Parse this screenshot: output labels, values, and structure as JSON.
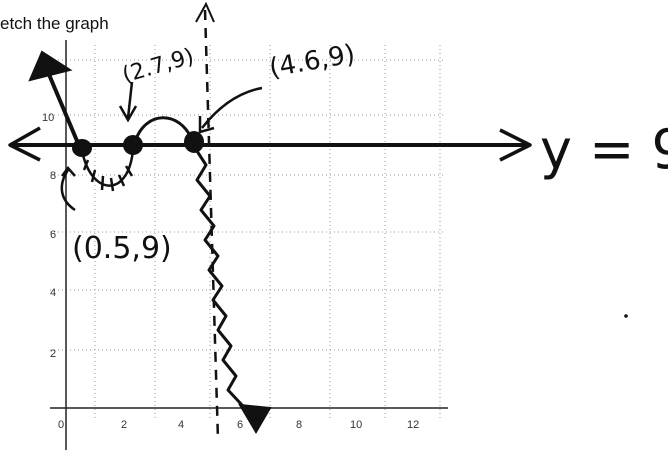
{
  "heading": "etch the graph",
  "x_ticks": [
    "0",
    "2",
    "4",
    "6",
    "8",
    "10",
    "12"
  ],
  "y_ticks": [
    "2",
    "4",
    "6",
    "8",
    "10"
  ],
  "annotations": {
    "point_left": "(0.5,9)",
    "point_mid": "(2.7,9)",
    "point_right": "(4.6,9)",
    "asymptote_label": "y = 9"
  },
  "colors": {
    "ink": "#111111",
    "grid": "#9a9a9a",
    "axis": "#222222"
  }
}
